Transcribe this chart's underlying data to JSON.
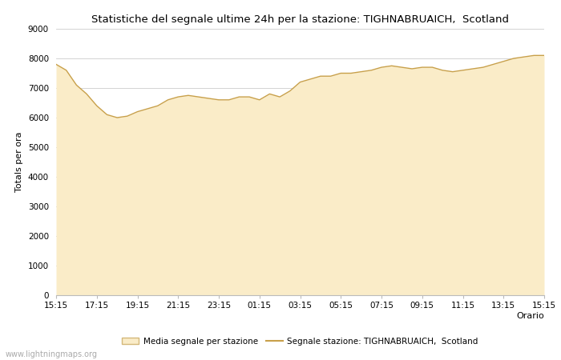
{
  "title": "Statistiche del segnale ultime 24h per la stazione: TIGHNABRUAICH,  Scotland",
  "xlabel": "Orario",
  "ylabel": "Totals per ora",
  "x_ticks": [
    "15:15",
    "17:15",
    "19:15",
    "21:15",
    "23:15",
    "01:15",
    "03:15",
    "05:15",
    "07:15",
    "09:15",
    "11:15",
    "13:15",
    "15:15"
  ],
  "ylim": [
    0,
    9000
  ],
  "y_ticks": [
    0,
    1000,
    2000,
    3000,
    4000,
    5000,
    6000,
    7000,
    8000,
    9000
  ],
  "fill_color": "#FAECC8",
  "fill_edge_color": "#D4B87A",
  "line_color": "#C8A04A",
  "bg_color": "#FFFFFF",
  "grid_color": "#CCCCCC",
  "legend1": "Media segnale per stazione",
  "legend2": "Segnale stazione: TIGHNABRUAICH,  Scotland",
  "watermark": "www.lightningmaps.org",
  "x_values": [
    0,
    1,
    2,
    3,
    4,
    5,
    6,
    7,
    8,
    9,
    10,
    11,
    12,
    13,
    14,
    15,
    16,
    17,
    18,
    19,
    20,
    21,
    22,
    23,
    24,
    25,
    26,
    27,
    28,
    29,
    30,
    31,
    32,
    33,
    34,
    35,
    36,
    37,
    38,
    39,
    40,
    41,
    42,
    43,
    44,
    45,
    46,
    47,
    48
  ],
  "fill_values": [
    7800,
    7600,
    7100,
    6800,
    6400,
    6100,
    6000,
    6050,
    6200,
    6300,
    6400,
    6600,
    6700,
    6750,
    6700,
    6650,
    6600,
    6600,
    6700,
    6700,
    6600,
    6800,
    6700,
    6900,
    7200,
    7300,
    7400,
    7400,
    7500,
    7500,
    7550,
    7600,
    7700,
    7750,
    7700,
    7650,
    7700,
    7700,
    7600,
    7550,
    7600,
    7650,
    7700,
    7800,
    7900,
    8000,
    8050,
    8100,
    8100
  ],
  "line_values": [
    7800,
    7600,
    7100,
    6800,
    6400,
    6100,
    6000,
    6050,
    6200,
    6300,
    6400,
    6600,
    6700,
    6750,
    6700,
    6650,
    6600,
    6600,
    6700,
    6700,
    6600,
    6800,
    6700,
    6900,
    7200,
    7300,
    7400,
    7400,
    7500,
    7500,
    7550,
    7600,
    7700,
    7750,
    7700,
    7650,
    7700,
    7700,
    7600,
    7550,
    7600,
    7650,
    7700,
    7800,
    7900,
    8000,
    8050,
    8100,
    8100
  ]
}
